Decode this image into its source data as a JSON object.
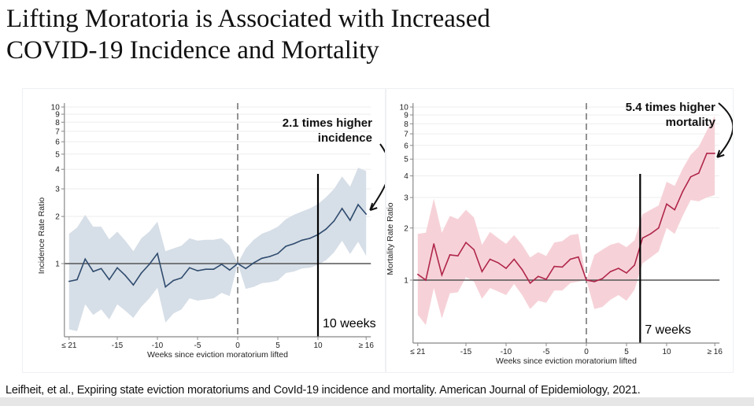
{
  "title": {
    "line1": "Lifting Moratoria is Associated with Increased",
    "line2": "COVID-19 Incidence and Mortality"
  },
  "citation": "Leifheit, et al., Expiring state eviction moratoriums and CovId-19 incidence and mortality. American Journal of Epidemiology, 2021.",
  "chart_data": [
    {
      "type": "area",
      "title": "",
      "xlabel": "Weeks since eviction moratorium lifted",
      "ylabel": "Incidence Rate Ratio",
      "yscale": "log",
      "ylim": [
        0.35,
        10.5
      ],
      "xlim": [
        -21,
        16
      ],
      "x_ticks": [
        -21,
        -15,
        -10,
        -5,
        0,
        5,
        10,
        16
      ],
      "x_tick_labels": [
        "≤ 21",
        "-15",
        "-10",
        "-5",
        "0",
        "5",
        "10",
        "≥ 16"
      ],
      "y_ticks": [
        1,
        2,
        3,
        4,
        5,
        6,
        7,
        8,
        9,
        10
      ],
      "y_tick_labels": [
        "1",
        "2",
        "3",
        "4",
        "5",
        "6",
        "7",
        "8",
        "9",
        "10"
      ],
      "grid": true,
      "reference_line_y": 1,
      "event_line_x": 0,
      "marker_line_x": 10,
      "marker_label": "10 weeks",
      "annotation": [
        "2.1 times higher",
        "incidence"
      ],
      "line_color": "#2f4b6e",
      "band_color": "#d4dce6",
      "x": [
        -21,
        -20,
        -19,
        -18,
        -17,
        -16,
        -15,
        -14,
        -13,
        -12,
        -11,
        -10,
        -9,
        -8,
        -7,
        -6,
        -5,
        -4,
        -3,
        -2,
        -1,
        0,
        1,
        2,
        3,
        4,
        5,
        6,
        7,
        8,
        9,
        10,
        11,
        12,
        13,
        14,
        15,
        16
      ],
      "series": [
        {
          "name": "Incidence Rate Ratio",
          "values": [
            0.77,
            0.79,
            1.07,
            0.89,
            0.93,
            0.79,
            0.94,
            0.84,
            0.73,
            0.87,
            0.99,
            1.16,
            0.71,
            0.78,
            0.81,
            0.94,
            0.9,
            0.92,
            0.92,
            0.99,
            0.91,
            1.0,
            0.93,
            1.01,
            1.08,
            1.11,
            1.16,
            1.29,
            1.34,
            1.41,
            1.45,
            1.53,
            1.66,
            1.87,
            2.25,
            1.89,
            2.38,
            2.07
          ]
        },
        {
          "name": "Upper 95% CI",
          "values": [
            1.55,
            1.7,
            2.05,
            1.72,
            1.72,
            1.43,
            1.6,
            1.4,
            1.2,
            1.45,
            1.6,
            1.85,
            1.2,
            1.25,
            1.3,
            1.45,
            1.4,
            1.42,
            1.42,
            1.45,
            1.3,
            1.0,
            1.25,
            1.42,
            1.55,
            1.62,
            1.72,
            1.92,
            2.05,
            2.15,
            2.25,
            2.4,
            2.65,
            3.0,
            3.6,
            3.1,
            4.1,
            3.9
          ]
        },
        {
          "name": "Lower 95% CI",
          "values": [
            0.38,
            0.37,
            0.55,
            0.47,
            0.51,
            0.44,
            0.55,
            0.5,
            0.45,
            0.53,
            0.6,
            0.7,
            0.42,
            0.48,
            0.51,
            0.6,
            0.58,
            0.59,
            0.6,
            0.65,
            0.62,
            1.0,
            0.69,
            0.71,
            0.75,
            0.76,
            0.78,
            0.87,
            0.89,
            0.93,
            0.94,
            0.98,
            1.05,
            1.18,
            1.4,
            1.15,
            1.38,
            1.12
          ]
        }
      ]
    },
    {
      "type": "area",
      "title": "",
      "xlabel": "Weeks since eviction moratorium lifted",
      "ylabel": "Mortality Rate Ratio",
      "yscale": "log",
      "ylim": [
        0.45,
        10.5
      ],
      "xlim": [
        -21,
        16
      ],
      "x_ticks": [
        -21,
        -15,
        -10,
        -5,
        0,
        5,
        10,
        16
      ],
      "x_tick_labels": [
        "≤ 21",
        "-15",
        "-10",
        "-5",
        "0",
        "5",
        "10",
        "≥ 16"
      ],
      "y_ticks": [
        1,
        2,
        3,
        4,
        5,
        6,
        7,
        8,
        9,
        10
      ],
      "y_tick_labels": [
        "1",
        "2",
        "3",
        "4",
        "5",
        "6",
        "7",
        "8",
        "9",
        "10"
      ],
      "grid": true,
      "reference_line_y": 1,
      "event_line_x": 0,
      "marker_line_x": 6.7,
      "marker_label": "7 weeks",
      "annotation": [
        "5.4 times higher",
        "mortality"
      ],
      "line_color": "#b0264a",
      "band_color": "#f6d0d6",
      "x": [
        -21,
        -20,
        -19,
        -18,
        -17,
        -16,
        -15,
        -14,
        -13,
        -12,
        -11,
        -10,
        -9,
        -8,
        -7,
        -6,
        -5,
        -4,
        -3,
        -2,
        -1,
        0,
        1,
        2,
        3,
        4,
        5,
        6,
        7,
        8,
        9,
        10,
        11,
        12,
        13,
        14,
        15,
        16
      ],
      "series": [
        {
          "name": "Mortality Rate Ratio",
          "values": [
            1.08,
            1.0,
            1.62,
            1.07,
            1.4,
            1.38,
            1.65,
            1.5,
            1.12,
            1.32,
            1.26,
            1.17,
            1.32,
            1.15,
            0.96,
            1.05,
            1.01,
            1.2,
            1.19,
            1.32,
            1.36,
            1.0,
            0.98,
            1.02,
            1.12,
            1.17,
            1.1,
            1.22,
            1.75,
            1.85,
            2.0,
            2.75,
            2.55,
            3.25,
            3.95,
            4.15,
            5.4,
            5.4
          ]
        },
        {
          "name": "Upper 95% CI",
          "values": [
            1.85,
            1.88,
            2.95,
            1.88,
            2.35,
            2.25,
            2.55,
            2.3,
            1.6,
            1.9,
            1.75,
            1.62,
            1.82,
            1.6,
            1.35,
            1.45,
            1.38,
            1.65,
            1.68,
            1.82,
            1.85,
            1.0,
            1.4,
            1.5,
            1.6,
            1.65,
            1.55,
            1.7,
            2.4,
            2.55,
            2.7,
            3.7,
            3.5,
            4.4,
            5.3,
            5.9,
            7.3,
            8.9
          ]
        },
        {
          "name": "Lower 95% CI",
          "values": [
            0.63,
            0.55,
            0.9,
            0.6,
            0.84,
            0.85,
            1.04,
            0.98,
            0.78,
            0.9,
            0.86,
            0.82,
            0.95,
            0.82,
            0.68,
            0.76,
            0.74,
            0.87,
            0.87,
            0.96,
            0.98,
            1.0,
            0.68,
            0.7,
            0.77,
            0.82,
            0.76,
            0.88,
            1.25,
            1.35,
            1.46,
            2.0,
            1.85,
            2.35,
            2.9,
            2.85,
            3.0,
            3.1
          ]
        }
      ]
    }
  ]
}
